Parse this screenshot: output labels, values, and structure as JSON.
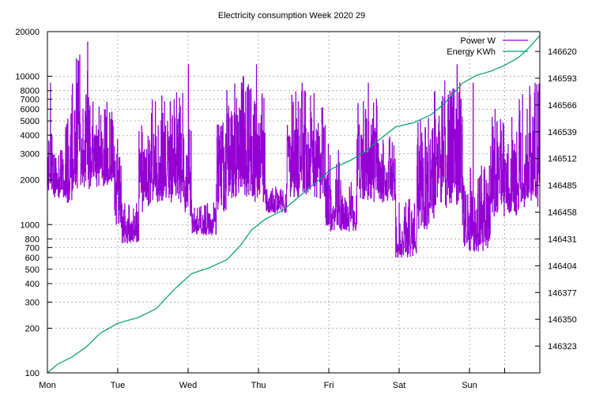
{
  "chart_data": {
    "type": "line",
    "title": "Electricity consumption Week 2020 29",
    "legend_position": "top-right",
    "grid": true,
    "x": {
      "range": [
        0,
        7
      ],
      "ticks": [
        {
          "pos": 0,
          "label": "Mon"
        },
        {
          "pos": 1,
          "label": "Tue"
        },
        {
          "pos": 2,
          "label": "Wed"
        },
        {
          "pos": 3,
          "label": "Thu"
        },
        {
          "pos": 4,
          "label": "Fri"
        },
        {
          "pos": 5,
          "label": "Sat"
        },
        {
          "pos": 6,
          "label": "Sun"
        }
      ],
      "extra_grid": [
        6.5
      ]
    },
    "y_left": {
      "scale": "log",
      "range": [
        100,
        20000
      ],
      "ticks": [
        100,
        200,
        300,
        400,
        500,
        600,
        700,
        800,
        1000,
        2000,
        3000,
        4000,
        5000,
        6000,
        7000,
        8000,
        10000,
        20000
      ]
    },
    "y_right": {
      "scale": "linear",
      "range": [
        146296,
        146640
      ],
      "ticks": [
        146323,
        146350,
        146377,
        146404,
        146431,
        146458,
        146485,
        146512,
        146539,
        146566,
        146593,
        146620
      ]
    },
    "series": [
      {
        "name": "Power W",
        "axis": "left",
        "color": "#9400d3",
        "bands": [
          [
            0.0,
            0.08,
            1700,
            6000
          ],
          [
            0.08,
            0.25,
            1500,
            3500
          ],
          [
            0.25,
            0.35,
            1400,
            9000
          ],
          [
            0.35,
            0.6,
            1700,
            14000
          ],
          [
            0.6,
            0.95,
            1800,
            7000
          ],
          [
            0.95,
            1.05,
            1000,
            4000
          ],
          [
            1.05,
            1.3,
            750,
            1400
          ],
          [
            1.3,
            1.45,
            1200,
            5000
          ],
          [
            1.45,
            1.95,
            1400,
            8000
          ],
          [
            1.95,
            2.05,
            1100,
            4500
          ],
          [
            2.05,
            2.4,
            850,
            1400
          ],
          [
            2.4,
            2.55,
            1200,
            5500
          ],
          [
            2.55,
            2.95,
            1500,
            10000
          ],
          [
            2.95,
            3.1,
            1400,
            8000
          ],
          [
            3.1,
            3.4,
            1200,
            1800
          ],
          [
            3.4,
            3.95,
            1500,
            8000
          ],
          [
            3.95,
            4.15,
            900,
            3500
          ],
          [
            4.15,
            4.4,
            900,
            2000
          ],
          [
            4.4,
            4.7,
            1400,
            8000
          ],
          [
            4.7,
            4.95,
            1400,
            4000
          ],
          [
            4.95,
            5.25,
            600,
            1500
          ],
          [
            5.25,
            5.5,
            900,
            5500
          ],
          [
            5.5,
            5.9,
            1300,
            9500
          ],
          [
            5.9,
            6.3,
            650,
            2500
          ],
          [
            6.3,
            6.7,
            1100,
            6000
          ],
          [
            6.7,
            7.0,
            1300,
            9000
          ]
        ],
        "spikes": [
          [
            0.04,
            9000
          ],
          [
            0.42,
            9000
          ],
          [
            0.57,
            17000
          ],
          [
            2.0,
            12000
          ],
          [
            2.97,
            12000
          ],
          [
            3.62,
            9000
          ],
          [
            4.56,
            9000
          ],
          [
            5.82,
            12000
          ],
          [
            6.05,
            9000
          ],
          [
            6.93,
            9000
          ]
        ]
      },
      {
        "name": "Energy KWh",
        "axis": "right",
        "color": "#009e73",
        "x": [
          0.0,
          0.15,
          0.35,
          0.55,
          0.75,
          1.0,
          1.3,
          1.55,
          1.8,
          2.05,
          2.3,
          2.55,
          2.75,
          2.9,
          3.1,
          3.35,
          3.6,
          3.85,
          4.05,
          4.3,
          4.5,
          4.7,
          4.95,
          5.2,
          5.45,
          5.65,
          5.9,
          6.1,
          6.3,
          6.5,
          6.7,
          6.85,
          7.0
        ],
        "values": [
          146296,
          146305,
          146312,
          146322,
          146336,
          146346,
          146352,
          146361,
          146380,
          146396,
          146402,
          146410,
          146425,
          146440,
          146451,
          146460,
          146475,
          146490,
          146502,
          146510,
          146518,
          146530,
          146544,
          146548,
          146556,
          146568,
          146588,
          146596,
          146600,
          146606,
          146614,
          146624,
          146636
        ]
      }
    ]
  }
}
